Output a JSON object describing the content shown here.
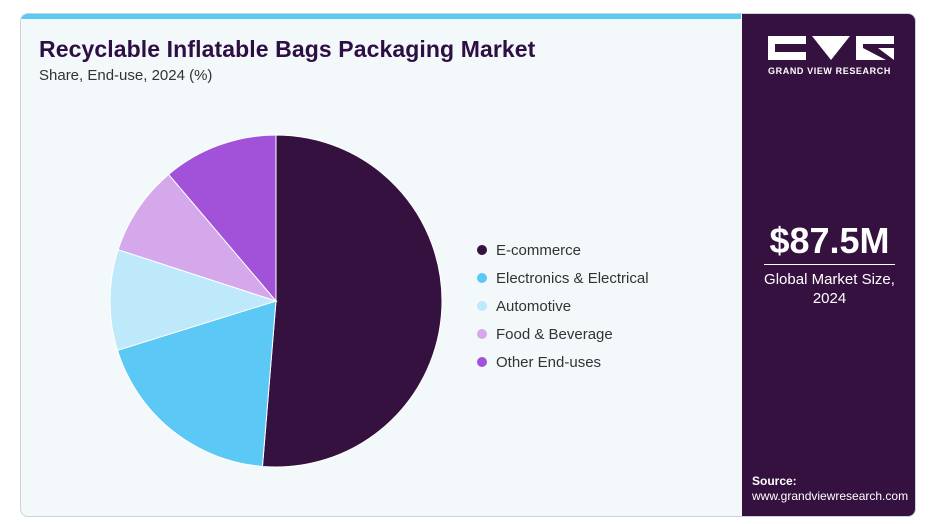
{
  "chart_data": {
    "type": "pie",
    "title": "Recyclable Inflatable Bags Packaging Market",
    "subtitle": "Share, End-use, 2024 (%)",
    "categories": [
      "E-commerce",
      "Electronics & Electrical",
      "Automotive",
      "Food & Beverage",
      "Other End-uses"
    ],
    "values": [
      51.3,
      18.9,
      9.8,
      8.8,
      11.2
    ],
    "colors": [
      "#35113f",
      "#5bc8f5",
      "#bde9fa",
      "#d5a8ec",
      "#a252d8"
    ],
    "legend_position": "right"
  },
  "sidebar": {
    "brand": "GRAND VIEW RESEARCH",
    "logo_icon": "gvr-logo-icon",
    "market_value": "$87.5M",
    "market_label_line1": "Global Market Size,",
    "market_label_line2": "2024",
    "source_label": "Source:",
    "source_url": "www.grandviewresearch.com"
  },
  "colors": {
    "accent_bar": "#5bc8f5",
    "sidebar_bg": "#35113f",
    "card_bg": "#f3f8fb"
  }
}
